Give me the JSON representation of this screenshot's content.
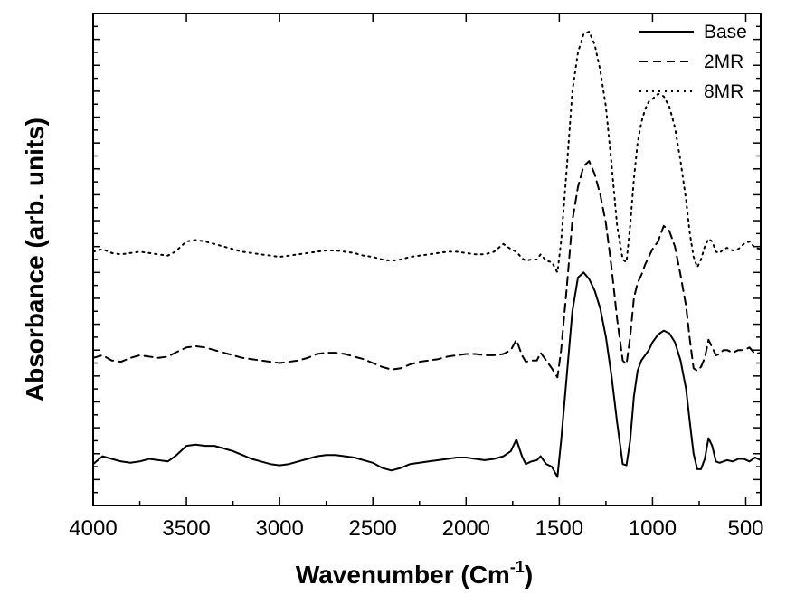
{
  "chart_data": {
    "type": "line",
    "xlabel": "Wavenumber (Cm",
    "xlabel_sup": "-1",
    "xlabel_close": ")",
    "ylabel": "Absorbance (arb. units)",
    "xlim": [
      4000,
      420
    ],
    "ylim": [
      0,
      19
    ],
    "x_reversed": true,
    "y_tick_labels_shown": false,
    "x_ticks": [
      4000,
      3500,
      3000,
      2500,
      2000,
      1500,
      1000,
      500
    ],
    "x_tick_labels": [
      "4000",
      "3500",
      "3000",
      "2500",
      "2000",
      "1500",
      "1000",
      "500"
    ],
    "legend_position": "top-right",
    "series": [
      {
        "name": "Base",
        "style": "solid",
        "color": "#000000",
        "x": [
          4000,
          3950,
          3900,
          3850,
          3800,
          3750,
          3700,
          3650,
          3600,
          3560,
          3500,
          3450,
          3400,
          3350,
          3300,
          3250,
          3200,
          3150,
          3100,
          3050,
          3000,
          2950,
          2900,
          2850,
          2800,
          2750,
          2700,
          2650,
          2600,
          2550,
          2500,
          2450,
          2400,
          2350,
          2300,
          2250,
          2200,
          2150,
          2100,
          2050,
          2000,
          1950,
          1900,
          1850,
          1800,
          1760,
          1730,
          1700,
          1680,
          1650,
          1620,
          1600,
          1570,
          1540,
          1510,
          1490,
          1460,
          1430,
          1400,
          1370,
          1340,
          1310,
          1280,
          1250,
          1220,
          1190,
          1160,
          1140,
          1120,
          1100,
          1080,
          1060,
          1040,
          1020,
          1000,
          970,
          940,
          910,
          880,
          850,
          820,
          800,
          780,
          760,
          740,
          720,
          700,
          680,
          660,
          640,
          620,
          600,
          570,
          540,
          510,
          480,
          450,
          420
        ],
        "y": [
          1.6,
          1.9,
          1.8,
          1.7,
          1.65,
          1.7,
          1.8,
          1.75,
          1.7,
          1.9,
          2.3,
          2.35,
          2.3,
          2.3,
          2.2,
          2.1,
          1.95,
          1.8,
          1.7,
          1.6,
          1.55,
          1.6,
          1.7,
          1.8,
          1.9,
          1.95,
          1.95,
          1.9,
          1.85,
          1.75,
          1.65,
          1.45,
          1.35,
          1.45,
          1.6,
          1.65,
          1.7,
          1.75,
          1.8,
          1.85,
          1.85,
          1.8,
          1.75,
          1.8,
          1.9,
          2.1,
          2.55,
          1.9,
          1.6,
          1.7,
          1.75,
          1.9,
          1.6,
          1.5,
          1.1,
          2.5,
          5.0,
          7.5,
          8.8,
          9.0,
          8.75,
          8.3,
          7.6,
          6.5,
          5.0,
          3.2,
          1.6,
          1.55,
          2.5,
          4.2,
          5.2,
          5.6,
          5.8,
          6.0,
          6.3,
          6.6,
          6.75,
          6.65,
          6.3,
          5.6,
          4.5,
          3.2,
          2.0,
          1.4,
          1.4,
          1.8,
          2.6,
          2.3,
          1.7,
          1.65,
          1.7,
          1.75,
          1.7,
          1.8,
          1.8,
          1.7,
          1.85,
          1.75
        ]
      },
      {
        "name": "2MR",
        "style": "dashed",
        "color": "#000000",
        "x": [
          4000,
          3950,
          3900,
          3850,
          3800,
          3750,
          3700,
          3650,
          3600,
          3560,
          3500,
          3450,
          3400,
          3350,
          3300,
          3250,
          3200,
          3150,
          3100,
          3050,
          3000,
          2950,
          2900,
          2850,
          2800,
          2750,
          2700,
          2650,
          2600,
          2550,
          2500,
          2450,
          2400,
          2350,
          2300,
          2250,
          2200,
          2150,
          2100,
          2050,
          2000,
          1950,
          1900,
          1850,
          1800,
          1760,
          1730,
          1700,
          1680,
          1650,
          1620,
          1600,
          1570,
          1540,
          1510,
          1490,
          1460,
          1430,
          1400,
          1370,
          1340,
          1310,
          1280,
          1250,
          1220,
          1190,
          1160,
          1140,
          1120,
          1100,
          1080,
          1060,
          1040,
          1020,
          1000,
          970,
          940,
          910,
          880,
          850,
          820,
          800,
          780,
          760,
          740,
          720,
          700,
          680,
          660,
          640,
          620,
          600,
          570,
          540,
          510,
          480,
          450,
          420
        ],
        "y": [
          5.7,
          5.8,
          5.6,
          5.55,
          5.7,
          5.8,
          5.75,
          5.7,
          5.75,
          5.9,
          6.1,
          6.15,
          6.1,
          6.0,
          5.9,
          5.8,
          5.7,
          5.65,
          5.6,
          5.55,
          5.5,
          5.55,
          5.6,
          5.7,
          5.85,
          5.9,
          5.9,
          5.85,
          5.75,
          5.65,
          5.5,
          5.35,
          5.25,
          5.3,
          5.45,
          5.55,
          5.6,
          5.65,
          5.75,
          5.8,
          5.85,
          5.85,
          5.8,
          5.8,
          5.85,
          6.0,
          6.4,
          5.8,
          5.55,
          5.6,
          5.6,
          5.9,
          5.6,
          5.3,
          4.95,
          6.0,
          8.4,
          11.0,
          12.3,
          13.1,
          13.3,
          12.8,
          12.0,
          10.9,
          9.2,
          7.2,
          5.6,
          5.45,
          6.5,
          8.0,
          8.6,
          8.9,
          9.3,
          9.6,
          9.9,
          10.2,
          10.8,
          10.6,
          10.0,
          8.9,
          7.7,
          6.4,
          5.3,
          5.2,
          5.35,
          5.7,
          6.4,
          6.1,
          5.8,
          5.85,
          6.0,
          6.0,
          5.9,
          6.0,
          6.0,
          6.1,
          5.85,
          5.9
        ]
      },
      {
        "name": "8MR",
        "style": "dotted",
        "color": "#000000",
        "x": [
          4000,
          3950,
          3900,
          3850,
          3800,
          3750,
          3700,
          3650,
          3600,
          3560,
          3500,
          3450,
          3400,
          3350,
          3300,
          3250,
          3200,
          3150,
          3100,
          3050,
          3000,
          2950,
          2900,
          2850,
          2800,
          2750,
          2700,
          2650,
          2600,
          2550,
          2500,
          2450,
          2400,
          2350,
          2300,
          2250,
          2200,
          2150,
          2100,
          2050,
          2000,
          1950,
          1900,
          1850,
          1800,
          1760,
          1730,
          1700,
          1680,
          1650,
          1620,
          1600,
          1570,
          1540,
          1510,
          1490,
          1460,
          1430,
          1400,
          1370,
          1340,
          1310,
          1280,
          1250,
          1220,
          1190,
          1160,
          1140,
          1120,
          1100,
          1080,
          1060,
          1040,
          1020,
          1000,
          970,
          940,
          910,
          880,
          850,
          820,
          800,
          780,
          760,
          740,
          720,
          700,
          680,
          660,
          640,
          620,
          600,
          570,
          540,
          510,
          480,
          450,
          420
        ],
        "y": [
          9.8,
          9.9,
          9.75,
          9.7,
          9.75,
          9.8,
          9.75,
          9.7,
          9.65,
          9.8,
          10.2,
          10.25,
          10.2,
          10.1,
          10.0,
          9.9,
          9.8,
          9.75,
          9.7,
          9.65,
          9.6,
          9.65,
          9.7,
          9.75,
          9.8,
          9.85,
          9.85,
          9.8,
          9.75,
          9.65,
          9.6,
          9.5,
          9.45,
          9.5,
          9.6,
          9.65,
          9.7,
          9.75,
          9.8,
          9.8,
          9.75,
          9.7,
          9.7,
          9.8,
          10.1,
          9.9,
          9.8,
          9.55,
          9.45,
          9.5,
          9.5,
          9.7,
          9.45,
          9.4,
          9.0,
          10.2,
          13.0,
          16.0,
          17.5,
          18.2,
          18.3,
          17.8,
          16.8,
          15.4,
          13.2,
          10.8,
          9.5,
          9.4,
          10.8,
          12.6,
          14.0,
          14.8,
          15.3,
          15.6,
          15.7,
          15.9,
          15.8,
          15.4,
          14.6,
          13.3,
          11.8,
          10.5,
          9.6,
          9.2,
          9.5,
          10.0,
          10.3,
          10.2,
          9.8,
          9.75,
          9.9,
          9.95,
          9.85,
          9.9,
          10.1,
          10.2,
          9.95,
          9.9
        ]
      }
    ]
  }
}
